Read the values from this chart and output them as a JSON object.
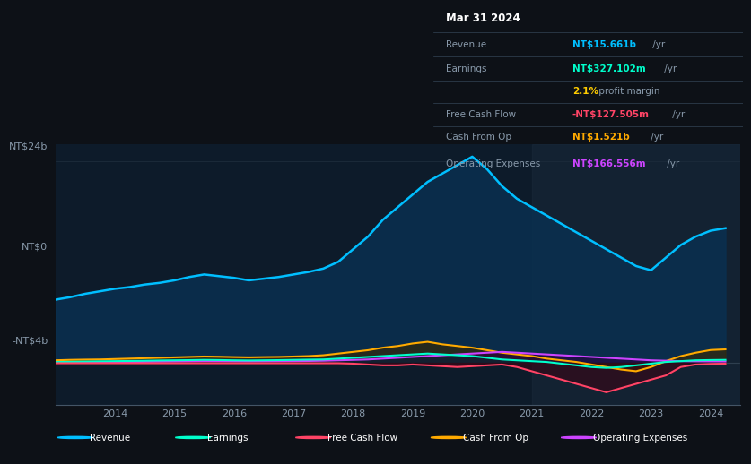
{
  "bg_color": "#0d1117",
  "plot_bg_color": "#0d1b2a",
  "title": "Mar 31 2024",
  "ylabel_top": "NT$24b",
  "ylabel_zero": "NT$0",
  "ylabel_neg": "-NT$4b",
  "years": [
    2013.0,
    2013.25,
    2013.5,
    2013.75,
    2014.0,
    2014.25,
    2014.5,
    2014.75,
    2015.0,
    2015.25,
    2015.5,
    2015.75,
    2016.0,
    2016.25,
    2016.5,
    2016.75,
    2017.0,
    2017.25,
    2017.5,
    2017.75,
    2018.0,
    2018.25,
    2018.5,
    2018.75,
    2019.0,
    2019.25,
    2019.5,
    2019.75,
    2020.0,
    2020.25,
    2020.5,
    2020.75,
    2021.0,
    2021.25,
    2021.5,
    2021.75,
    2022.0,
    2022.25,
    2022.5,
    2022.75,
    2023.0,
    2023.25,
    2023.5,
    2023.75,
    2024.0,
    2024.25
  ],
  "revenue": [
    7.5,
    7.8,
    8.2,
    8.5,
    8.8,
    9.0,
    9.3,
    9.5,
    9.8,
    10.2,
    10.5,
    10.3,
    10.1,
    9.8,
    10.0,
    10.2,
    10.5,
    10.8,
    11.2,
    12.0,
    13.5,
    15.0,
    17.0,
    18.5,
    20.0,
    21.5,
    22.5,
    23.5,
    24.5,
    23.0,
    21.0,
    19.5,
    18.5,
    17.5,
    16.5,
    15.5,
    14.5,
    13.5,
    12.5,
    11.5,
    11.0,
    12.5,
    14.0,
    15.0,
    15.7,
    16.0
  ],
  "earnings": [
    0.1,
    0.12,
    0.15,
    0.18,
    0.2,
    0.22,
    0.25,
    0.28,
    0.3,
    0.32,
    0.35,
    0.33,
    0.3,
    0.28,
    0.3,
    0.32,
    0.35,
    0.38,
    0.4,
    0.5,
    0.6,
    0.7,
    0.8,
    0.9,
    1.0,
    1.1,
    1.0,
    0.9,
    0.8,
    0.6,
    0.4,
    0.3,
    0.2,
    0.1,
    -0.1,
    -0.3,
    -0.5,
    -0.6,
    -0.5,
    -0.3,
    -0.1,
    0.1,
    0.2,
    0.3,
    0.33,
    0.35
  ],
  "free_cash_flow": [
    -0.05,
    -0.05,
    -0.05,
    -0.05,
    -0.05,
    -0.05,
    -0.05,
    -0.05,
    -0.05,
    -0.05,
    -0.05,
    -0.05,
    -0.05,
    -0.05,
    -0.05,
    -0.05,
    -0.05,
    -0.05,
    -0.05,
    -0.05,
    -0.1,
    -0.2,
    -0.3,
    -0.3,
    -0.2,
    -0.3,
    -0.4,
    -0.5,
    -0.4,
    -0.3,
    -0.2,
    -0.5,
    -1.0,
    -1.5,
    -2.0,
    -2.5,
    -3.0,
    -3.5,
    -3.0,
    -2.5,
    -2.0,
    -1.5,
    -0.5,
    -0.2,
    -0.13,
    -0.1
  ],
  "cash_from_op": [
    0.3,
    0.35,
    0.38,
    0.4,
    0.45,
    0.5,
    0.55,
    0.6,
    0.65,
    0.7,
    0.75,
    0.72,
    0.68,
    0.65,
    0.68,
    0.7,
    0.75,
    0.8,
    0.9,
    1.1,
    1.3,
    1.5,
    1.8,
    2.0,
    2.3,
    2.5,
    2.2,
    2.0,
    1.8,
    1.5,
    1.2,
    1.0,
    0.8,
    0.5,
    0.3,
    0.1,
    -0.2,
    -0.5,
    -0.8,
    -1.0,
    -0.5,
    0.2,
    0.8,
    1.2,
    1.52,
    1.6
  ],
  "operating_expenses": [
    0.05,
    0.06,
    0.07,
    0.08,
    0.09,
    0.1,
    0.12,
    0.14,
    0.16,
    0.18,
    0.2,
    0.19,
    0.18,
    0.17,
    0.18,
    0.19,
    0.2,
    0.22,
    0.25,
    0.3,
    0.35,
    0.4,
    0.5,
    0.6,
    0.7,
    0.8,
    0.9,
    1.0,
    1.1,
    1.2,
    1.3,
    1.2,
    1.1,
    1.0,
    0.9,
    0.8,
    0.7,
    0.6,
    0.5,
    0.4,
    0.3,
    0.25,
    0.2,
    0.18,
    0.17,
    0.16
  ],
  "revenue_color": "#00bfff",
  "earnings_color": "#00ffcc",
  "fcf_color": "#ff4466",
  "cash_op_color": "#ffaa00",
  "op_exp_color": "#cc44ff",
  "revenue_fill": "#0a3a5a",
  "legend_bg": "#1a1a2e",
  "info_box": {
    "title": "Mar 31 2024",
    "revenue_label": "Revenue",
    "revenue_value": "NT$15.661b",
    "revenue_unit": " /yr",
    "earnings_label": "Earnings",
    "earnings_value": "NT$327.102m",
    "earnings_unit": " /yr",
    "margin_value": "2.1%",
    "margin_text": " profit margin",
    "fcf_label": "Free Cash Flow",
    "fcf_value": "-NT$127.505m",
    "fcf_unit": " /yr",
    "cashop_label": "Cash From Op",
    "cashop_value": "NT$1.521b",
    "cashop_unit": " /yr",
    "opex_label": "Operating Expenses",
    "opex_value": "NT$166.556m",
    "opex_unit": " /yr"
  }
}
